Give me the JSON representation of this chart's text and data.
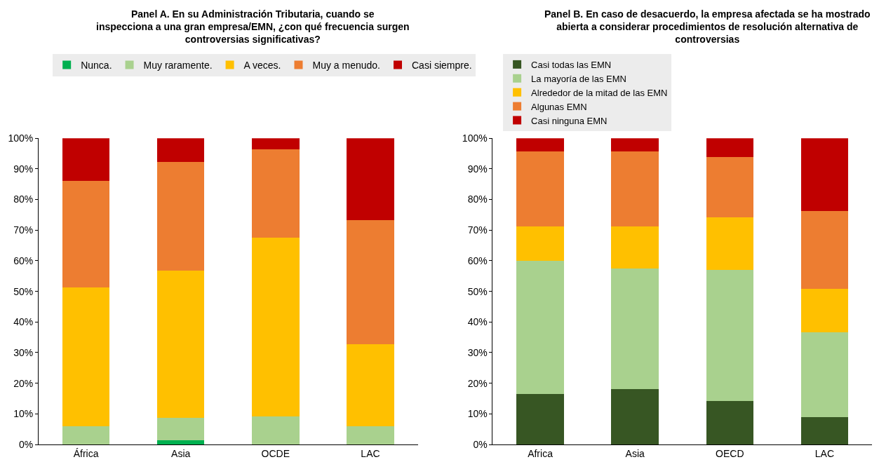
{
  "chart_data": [
    {
      "type": "bar",
      "stacked": true,
      "title": "Panel A. En su Administración Tributaria, cuando se inspecciona a una gran empresa/EMN, ¿con qué frecuencia surgen controversias significativas?",
      "categories": [
        "África",
        "Asia",
        "OCDE",
        "LAC"
      ],
      "ylim": [
        0,
        100
      ],
      "yticks": [
        {
          "value": 0,
          "label": "0%"
        },
        {
          "value": 10,
          "label": "10%"
        },
        {
          "value": 20,
          "label": "20%"
        },
        {
          "value": 30,
          "label": "30%"
        },
        {
          "value": 40,
          "label": "40%"
        },
        {
          "value": 50,
          "label": "50%"
        },
        {
          "value": 60,
          "label": "60%"
        },
        {
          "value": 70,
          "label": "70%"
        },
        {
          "value": 80,
          "label": "80%"
        },
        {
          "value": 90,
          "label": "90%"
        },
        {
          "value": 100,
          "label": "100%"
        }
      ],
      "legend": "top",
      "grid": false,
      "series": [
        {
          "name": "Nunca.",
          "color": "#00b050",
          "values": [
            0,
            1.3,
            0,
            0
          ]
        },
        {
          "name": "Muy raramente.",
          "color": "#a9d18e",
          "values": [
            5.9,
            7.3,
            9.1,
            5.9
          ]
        },
        {
          "name": "A veces.",
          "color": "#ffc000",
          "values": [
            45.4,
            48.1,
            58.4,
            26.8
          ]
        },
        {
          "name": "Muy a menudo.",
          "color": "#ed7d31",
          "values": [
            34.8,
            35.5,
            28.9,
            40.5
          ]
        },
        {
          "name": "Casi siempre.",
          "color": "#c00000",
          "values": [
            13.9,
            7.8,
            3.6,
            26.8
          ]
        }
      ]
    },
    {
      "type": "bar",
      "stacked": true,
      "title": "Panel B. En caso de desacuerdo, la empresa afectada se ha mostrado abierta a considerar procedimientos de resolución alternativa de controversias",
      "categories": [
        "Africa",
        "Asia",
        "OECD",
        "LAC"
      ],
      "ylim": [
        0,
        100
      ],
      "yticks": [
        {
          "value": 0,
          "label": "0%"
        },
        {
          "value": 10,
          "label": "10%"
        },
        {
          "value": 20,
          "label": "20%"
        },
        {
          "value": 30,
          "label": "30%"
        },
        {
          "value": 40,
          "label": "40%"
        },
        {
          "value": 50,
          "label": "50%"
        },
        {
          "value": 60,
          "label": "60%"
        },
        {
          "value": 70,
          "label": "70%"
        },
        {
          "value": 80,
          "label": "80%"
        },
        {
          "value": 90,
          "label": "90%"
        },
        {
          "value": 100,
          "label": "100%"
        }
      ],
      "legend": "top",
      "grid": false,
      "series": [
        {
          "name": "Casi todas las EMN",
          "color": "#375623",
          "values": [
            16.5,
            18.1,
            14.1,
            8.9
          ]
        },
        {
          "name": "La mayoría de las EMN",
          "color": "#a9d18e",
          "values": [
            43.4,
            39.3,
            42.9,
            27.8
          ]
        },
        {
          "name": "Alrededor de la mitad de las EMN",
          "color": "#ffc000",
          "values": [
            11.2,
            13.7,
            17.1,
            14.1
          ]
        },
        {
          "name": "Algunas EMN",
          "color": "#ed7d31",
          "values": [
            24.5,
            24.5,
            19.8,
            25.4
          ]
        },
        {
          "name": "Casi ninguna EMN",
          "color": "#c00000",
          "values": [
            4.4,
            4.4,
            6.1,
            23.8
          ]
        }
      ]
    }
  ]
}
